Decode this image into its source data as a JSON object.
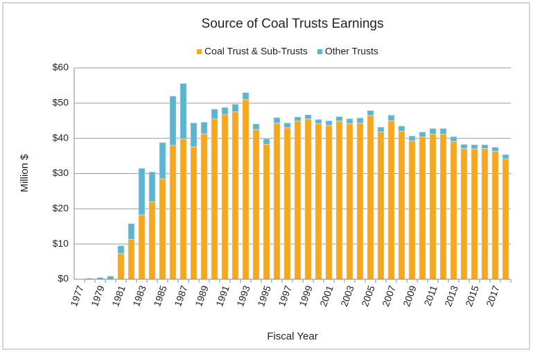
{
  "chart_data": {
    "type": "stacked_bar",
    "title": "Source of Coal Trusts Earnings",
    "x_label": "Fiscal Year",
    "y_label": "Million $",
    "categories": [
      "1977",
      null,
      "1979",
      null,
      "1981",
      null,
      "1983",
      null,
      "1985",
      null,
      "1987",
      null,
      "1989",
      null,
      "1991",
      null,
      "1993",
      null,
      "1995",
      null,
      "1997",
      null,
      "1999",
      null,
      "2001",
      null,
      "2003",
      null,
      "2005",
      null,
      "2007",
      null,
      "2009",
      null,
      "2011",
      null,
      "2013",
      null,
      "2015",
      null,
      "2017",
      null
    ],
    "series": [
      {
        "name": "Coal Trust & Sub-Trusts",
        "color": "#f5a81c",
        "values": [
          0,
          0,
          0,
          0,
          7.3,
          11.3,
          18.3,
          22,
          28.5,
          38,
          39.8,
          37.6,
          41.3,
          45.5,
          46.8,
          47.5,
          51,
          42.5,
          38.3,
          44.3,
          43,
          44.9,
          45.5,
          44.2,
          43.7,
          44.9,
          44.2,
          44.3,
          46.5,
          41.8,
          45,
          42,
          39.3,
          40.4,
          41.2,
          41.2,
          39.1,
          37.1,
          37,
          37.1,
          36.3,
          34.2
        ]
      },
      {
        "name": "Other Trusts",
        "color": "#5bb5d0",
        "values": [
          0,
          0.3,
          0.5,
          0.9,
          2.2,
          4.5,
          13.2,
          8.5,
          10.3,
          14,
          15.8,
          6.8,
          3.3,
          2.8,
          2,
          2.2,
          2,
          1.6,
          1.6,
          1.6,
          1.4,
          1.2,
          1.2,
          1.2,
          1.3,
          1.3,
          1.4,
          1.5,
          1.4,
          1.4,
          1.6,
          1.5,
          1.4,
          1.4,
          1.6,
          1.6,
          1.4,
          1.2,
          1.2,
          1.1,
          1.2,
          1.2
        ]
      }
    ],
    "ylim": [
      0,
      60
    ],
    "yticks": [
      {
        "value": 0,
        "label": "$0"
      },
      {
        "value": 10,
        "label": "$10"
      },
      {
        "value": 20,
        "label": "$20"
      },
      {
        "value": 30,
        "label": "$30"
      },
      {
        "value": 40,
        "label": "$40"
      },
      {
        "value": 50,
        "label": "$50"
      },
      {
        "value": 60,
        "label": "$60"
      }
    ],
    "grid": true,
    "legend": "top"
  }
}
